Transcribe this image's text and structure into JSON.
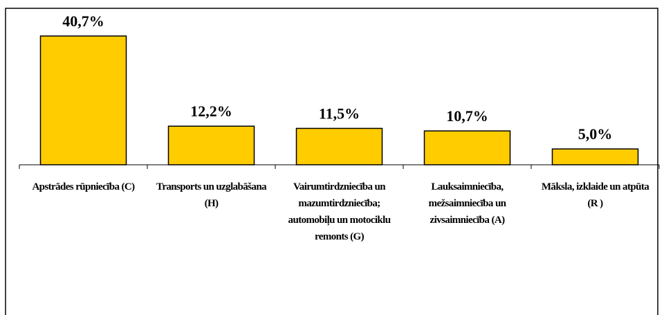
{
  "chart_data": {
    "type": "bar",
    "categories": [
      "Apstrādes rūpniecība (C)",
      "Transports un uzglabāšana (H)",
      "Vairumtirdzniecība un mazumtirdzniecība; automobiļu un motociklu remonts (G)",
      "Lauksaimniecība, mežsaimniecība un zivsaimniecība (A)",
      "Māksla, izklaide un atpūta (R )"
    ],
    "values": [
      40.7,
      12.2,
      11.5,
      10.7,
      5.0
    ],
    "value_labels": [
      "40,7%",
      "12,2%",
      "11,5%",
      "10,7%",
      "5,0%"
    ],
    "color": "#ffcc00"
  }
}
